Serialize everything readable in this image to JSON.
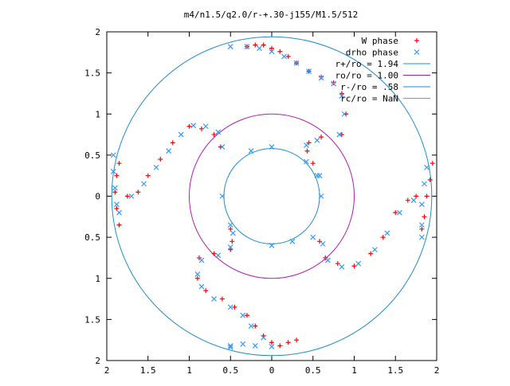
{
  "chart_data": {
    "type": "scatter",
    "title": "m4/n1.5/q2.0/r-+.30-j155/M1.5/512",
    "xlabel": "",
    "ylabel": "",
    "xlim": [
      -2,
      2
    ],
    "ylim": [
      -2,
      2
    ],
    "x_ticks": [
      -2,
      -1.5,
      -1,
      -0.5,
      0,
      0.5,
      1,
      1.5,
      2
    ],
    "y_ticks": [
      -2,
      -1.5,
      -1,
      -0.5,
      0,
      0.5,
      1,
      1.5,
      2
    ],
    "x_tick_labels": [
      "2",
      "1.5",
      "1",
      "0.5",
      "0",
      "0.5",
      "1",
      "1.5",
      "2"
    ],
    "y_tick_labels": [
      "2",
      "1.5",
      "1",
      "0.5",
      "0",
      "0.5",
      "1",
      "1.5",
      "2"
    ],
    "grid": false,
    "legend_position": "top-right",
    "colors": {
      "w_phase": "#ff0000",
      "drho_phase": "#3399ff",
      "r_plus": "#1f8fcc",
      "r_o": "#b020b0",
      "r_minus": "#1f8fcc",
      "r_c": "#20c0d0"
    },
    "series": [
      {
        "name": "W phase",
        "marker": "plus",
        "points": [
          [
            -0.3,
            1.82
          ],
          [
            -0.2,
            1.84
          ],
          [
            -0.1,
            1.84
          ],
          [
            0.0,
            1.8
          ],
          [
            0.1,
            1.76
          ],
          [
            0.2,
            1.7
          ],
          [
            0.3,
            1.62
          ],
          [
            0.45,
            1.52
          ],
          [
            0.6,
            1.45
          ],
          [
            0.75,
            1.38
          ],
          [
            0.85,
            1.25
          ],
          [
            0.9,
            1.0
          ],
          [
            0.85,
            0.75
          ],
          [
            0.6,
            0.72
          ],
          [
            0.45,
            0.65
          ],
          [
            0.43,
            0.55
          ],
          [
            0.5,
            0.4
          ],
          [
            1.95,
            0.4
          ],
          [
            1.92,
            0.2
          ],
          [
            1.88,
            0.0
          ],
          [
            1.85,
            -0.25
          ],
          [
            1.82,
            -0.4
          ],
          [
            1.75,
            0.0
          ],
          [
            1.65,
            -0.05
          ],
          [
            1.5,
            -0.2
          ],
          [
            1.35,
            -0.5
          ],
          [
            1.2,
            -0.7
          ],
          [
            1.0,
            -0.85
          ],
          [
            0.8,
            -0.82
          ],
          [
            0.65,
            -0.75
          ],
          [
            0.58,
            -0.55
          ],
          [
            0.3,
            -1.75
          ],
          [
            0.2,
            -1.78
          ],
          [
            0.1,
            -1.82
          ],
          [
            0.0,
            -1.78
          ],
          [
            -0.1,
            -1.7
          ],
          [
            -0.2,
            -1.58
          ],
          [
            -0.3,
            -1.45
          ],
          [
            -0.45,
            -1.35
          ],
          [
            -0.6,
            -1.25
          ],
          [
            -0.8,
            -1.15
          ],
          [
            -0.9,
            -1.0
          ],
          [
            -0.88,
            -0.75
          ],
          [
            -0.7,
            -0.7
          ],
          [
            -0.5,
            -0.65
          ],
          [
            -0.48,
            -0.55
          ],
          [
            -0.5,
            -0.4
          ],
          [
            -1.85,
            -0.35
          ],
          [
            -1.88,
            -0.15
          ],
          [
            -1.9,
            0.05
          ],
          [
            -1.88,
            0.25
          ],
          [
            -1.85,
            0.4
          ],
          [
            -1.75,
            0.0
          ],
          [
            -1.62,
            0.05
          ],
          [
            -1.5,
            0.25
          ],
          [
            -1.35,
            0.45
          ],
          [
            -1.2,
            0.65
          ],
          [
            -1.0,
            0.85
          ],
          [
            -0.85,
            0.82
          ],
          [
            -0.7,
            0.75
          ],
          [
            -0.62,
            0.6
          ]
        ]
      },
      {
        "name": "drho phase",
        "marker": "cross",
        "points": [
          [
            -0.5,
            1.82
          ],
          [
            -0.3,
            1.82
          ],
          [
            -0.15,
            1.8
          ],
          [
            0.0,
            1.76
          ],
          [
            0.15,
            1.7
          ],
          [
            0.3,
            1.62
          ],
          [
            0.45,
            1.52
          ],
          [
            0.6,
            1.44
          ],
          [
            0.75,
            1.37
          ],
          [
            0.85,
            1.22
          ],
          [
            0.88,
            1.0
          ],
          [
            0.82,
            0.75
          ],
          [
            0.55,
            0.68
          ],
          [
            0.42,
            0.62
          ],
          [
            0.42,
            0.42
          ],
          [
            0.55,
            0.25
          ],
          [
            0.58,
            0.25
          ],
          [
            0.0,
            0.6
          ],
          [
            -0.25,
            0.55
          ],
          [
            -0.6,
            0.0
          ],
          [
            0.6,
            0.0
          ],
          [
            1.88,
            0.35
          ],
          [
            1.85,
            0.15
          ],
          [
            1.82,
            -0.1
          ],
          [
            1.82,
            -0.35
          ],
          [
            1.82,
            -0.5
          ],
          [
            1.72,
            -0.05
          ],
          [
            1.55,
            -0.2
          ],
          [
            1.4,
            -0.45
          ],
          [
            1.25,
            -0.65
          ],
          [
            1.05,
            -0.82
          ],
          [
            0.85,
            -0.86
          ],
          [
            0.68,
            -0.78
          ],
          [
            0.62,
            -0.58
          ],
          [
            0.5,
            -0.5
          ],
          [
            0.25,
            -0.55
          ],
          [
            0.0,
            -0.6
          ],
          [
            0.0,
            -1.83
          ],
          [
            -0.2,
            -1.82
          ],
          [
            -0.35,
            -1.8
          ],
          [
            -0.5,
            -1.84
          ],
          [
            -0.5,
            -1.82
          ],
          [
            -0.1,
            -1.72
          ],
          [
            -0.25,
            -1.58
          ],
          [
            -0.35,
            -1.45
          ],
          [
            -0.5,
            -1.35
          ],
          [
            -0.7,
            -1.25
          ],
          [
            -0.85,
            -1.1
          ],
          [
            -0.9,
            -0.95
          ],
          [
            -0.85,
            -0.78
          ],
          [
            -0.65,
            -0.72
          ],
          [
            -0.5,
            -0.62
          ],
          [
            -0.47,
            -0.45
          ],
          [
            -0.5,
            -0.35
          ],
          [
            -1.92,
            0.5
          ],
          [
            -1.92,
            0.3
          ],
          [
            -1.9,
            0.1
          ],
          [
            -1.88,
            -0.1
          ],
          [
            -1.85,
            -0.2
          ],
          [
            -1.7,
            0.0
          ],
          [
            -1.55,
            0.15
          ],
          [
            -1.4,
            0.35
          ],
          [
            -1.25,
            0.55
          ],
          [
            -1.1,
            0.75
          ],
          [
            -0.95,
            0.86
          ],
          [
            -0.8,
            0.85
          ],
          [
            -0.65,
            0.78
          ],
          [
            -0.6,
            0.6
          ]
        ]
      },
      {
        "name": "r+/ro = 1.94",
        "type": "circle",
        "radius": 1.94
      },
      {
        "name": "ro/ro = 1.00",
        "type": "circle",
        "radius": 1.0
      },
      {
        "name": "r-/ro = .58",
        "type": "circle",
        "radius": 0.58
      },
      {
        "name": "rc/ro = NaN",
        "type": "circle",
        "radius": null
      }
    ]
  }
}
